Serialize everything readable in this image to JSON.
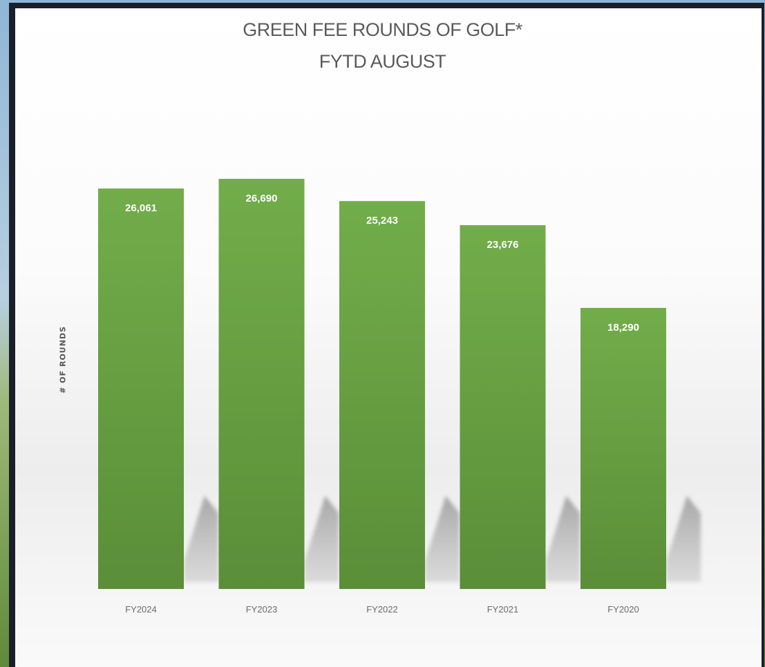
{
  "chart_data": {
    "type": "bar",
    "title": "GREEN FEE ROUNDS OF GOLF*",
    "subtitle": "FYTD AUGUST",
    "ylabel": "# OF ROUNDS",
    "xlabel": "",
    "categories": [
      "FY2024",
      "FY2023",
      "FY2022",
      "FY2021",
      "FY2020"
    ],
    "values": [
      26061,
      26690,
      25243,
      23676,
      18290
    ],
    "data_labels": [
      "26,061",
      "26,690",
      "25,243",
      "23,676",
      "18,290"
    ],
    "ylim": [
      0,
      26690
    ],
    "grid": false,
    "legend": "none"
  },
  "colors": {
    "bar_top": "#72ad4a",
    "bar_bottom": "#5a8e38",
    "label_text": "#ffffff",
    "tick_text": "#6b6b6b",
    "title_text": "#5a5a5a"
  }
}
